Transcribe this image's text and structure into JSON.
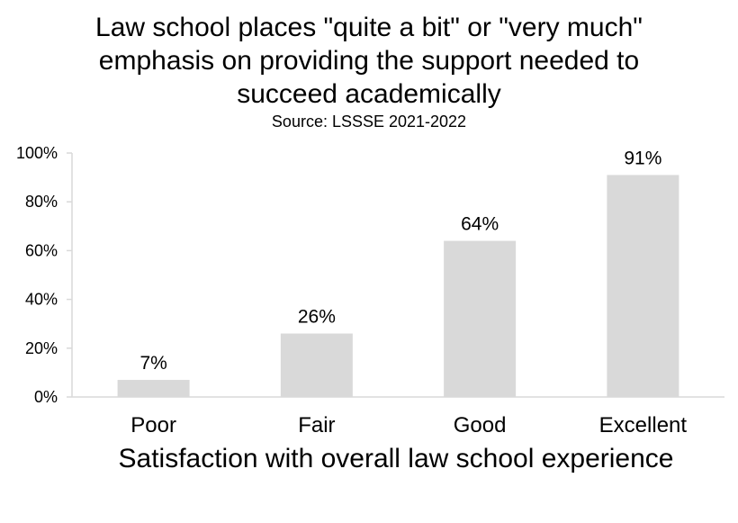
{
  "chart_data": {
    "type": "bar",
    "title": "Law school places \"quite a bit\" or \"very much\" emphasis on providing the support needed to succeed academically",
    "subtitle": "Source: LSSSE 2021-2022",
    "xlabel": "Satisfaction with overall law school experience",
    "ylabel": "",
    "categories": [
      "Poor",
      "Fair",
      "Good",
      "Excellent"
    ],
    "values": [
      7,
      26,
      64,
      91
    ],
    "value_labels": [
      "7%",
      "26%",
      "64%",
      "91%"
    ],
    "ylim": [
      0,
      100
    ],
    "yticks": [
      0,
      20,
      40,
      60,
      80,
      100
    ],
    "ytick_labels": [
      "0%",
      "20%",
      "40%",
      "60%",
      "80%",
      "100%"
    ],
    "bar_color": "#d9d9d9",
    "axis_color": "#d9d9d9",
    "grid": false,
    "legend": "none"
  }
}
